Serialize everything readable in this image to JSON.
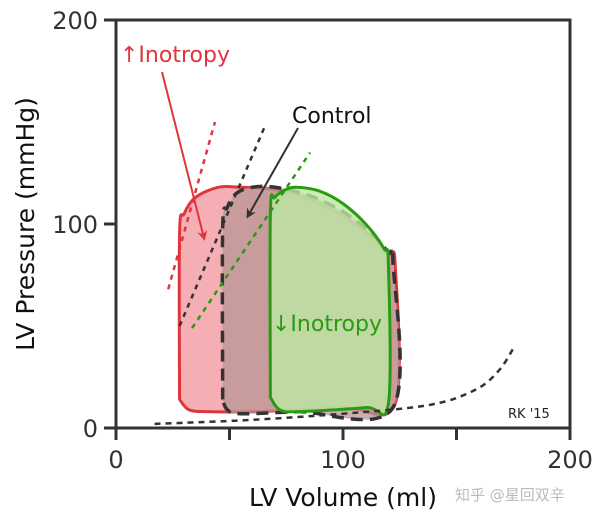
{
  "chart_data": {
    "type": "line",
    "xlabel": "LV Volume (ml)",
    "ylabel": "LV Pressure (mmHg)",
    "xlim": [
      0,
      200
    ],
    "ylim": [
      0,
      200
    ],
    "x_ticks": [
      0,
      50,
      100,
      150,
      200
    ],
    "x_tick_labels": [
      "0",
      "",
      "100",
      "",
      "200"
    ],
    "y_ticks": [
      0,
      100,
      200
    ],
    "y_tick_labels": [
      "0",
      "100",
      "200"
    ],
    "grid": false,
    "loops": [
      {
        "id": "increased-inotropy",
        "stroke": "#e0353d",
        "fill": "#f29aa0",
        "dashed": false,
        "points": [
          [
            28,
            14
          ],
          [
            28,
            95
          ],
          [
            30,
            105
          ],
          [
            35,
            113
          ],
          [
            45,
            118
          ],
          [
            55,
            118
          ],
          [
            70,
            117
          ],
          [
            85,
            112
          ],
          [
            100,
            104
          ],
          [
            112,
            94
          ],
          [
            120,
            85
          ],
          [
            123,
            80
          ],
          [
            123,
            12
          ],
          [
            100,
            10
          ],
          [
            60,
            8
          ],
          [
            40,
            8
          ],
          [
            32,
            9
          ],
          [
            28,
            14
          ]
        ]
      },
      {
        "id": "control",
        "stroke": "#333333",
        "fill": "#b89595",
        "dashed": true,
        "points": [
          [
            47,
            14
          ],
          [
            47,
            98
          ],
          [
            49,
            108
          ],
          [
            53,
            115
          ],
          [
            60,
            118
          ],
          [
            70,
            118
          ],
          [
            85,
            114
          ],
          [
            100,
            106
          ],
          [
            112,
            96
          ],
          [
            120,
            86
          ],
          [
            122,
            82
          ],
          [
            122,
            10
          ],
          [
            80,
            8
          ],
          [
            55,
            7
          ],
          [
            49,
            9
          ],
          [
            47,
            14
          ]
        ]
      },
      {
        "id": "decreased-inotropy",
        "stroke": "#2a9a12",
        "fill": "#bde8a4",
        "dashed": false,
        "points": [
          [
            68,
            15
          ],
          [
            68,
            105
          ],
          [
            70,
            113
          ],
          [
            75,
            117
          ],
          [
            80,
            118
          ],
          [
            90,
            116
          ],
          [
            100,
            110
          ],
          [
            110,
            100
          ],
          [
            118,
            88
          ],
          [
            120,
            80
          ],
          [
            120,
            12
          ],
          [
            110,
            10
          ],
          [
            80,
            8
          ],
          [
            72,
            9
          ],
          [
            68,
            15
          ]
        ]
      }
    ],
    "espvr_lines": [
      {
        "id": "espvr-increased",
        "color": "#e0353d",
        "points": [
          [
            23,
            68
          ],
          [
            43.6,
            150
          ]
        ]
      },
      {
        "id": "espvr-control",
        "color": "#333333",
        "points": [
          [
            28,
            50
          ],
          [
            66,
            149
          ]
        ]
      },
      {
        "id": "espvr-decreased",
        "color": "#2a9a12",
        "points": [
          [
            33.5,
            49
          ],
          [
            85.5,
            135
          ]
        ]
      }
    ],
    "edpvr": {
      "color": "#333333",
      "points": [
        [
          17,
          2
        ],
        [
          60,
          4
        ],
        [
          100,
          7
        ],
        [
          130,
          10
        ],
        [
          145,
          13
        ],
        [
          155,
          17
        ],
        [
          163,
          22
        ],
        [
          170,
          30
        ],
        [
          175,
          39
        ]
      ]
    },
    "annotations": {
      "increased": {
        "text": "↑Inotropy",
        "color": "#e0353d"
      },
      "control": {
        "text": "Control",
        "color": "#111111"
      },
      "decreased": {
        "text": "↓Inotropy",
        "color": "#2a9a12"
      },
      "signature": "RK '15"
    }
  },
  "watermark": "知乎 @星回双辛"
}
